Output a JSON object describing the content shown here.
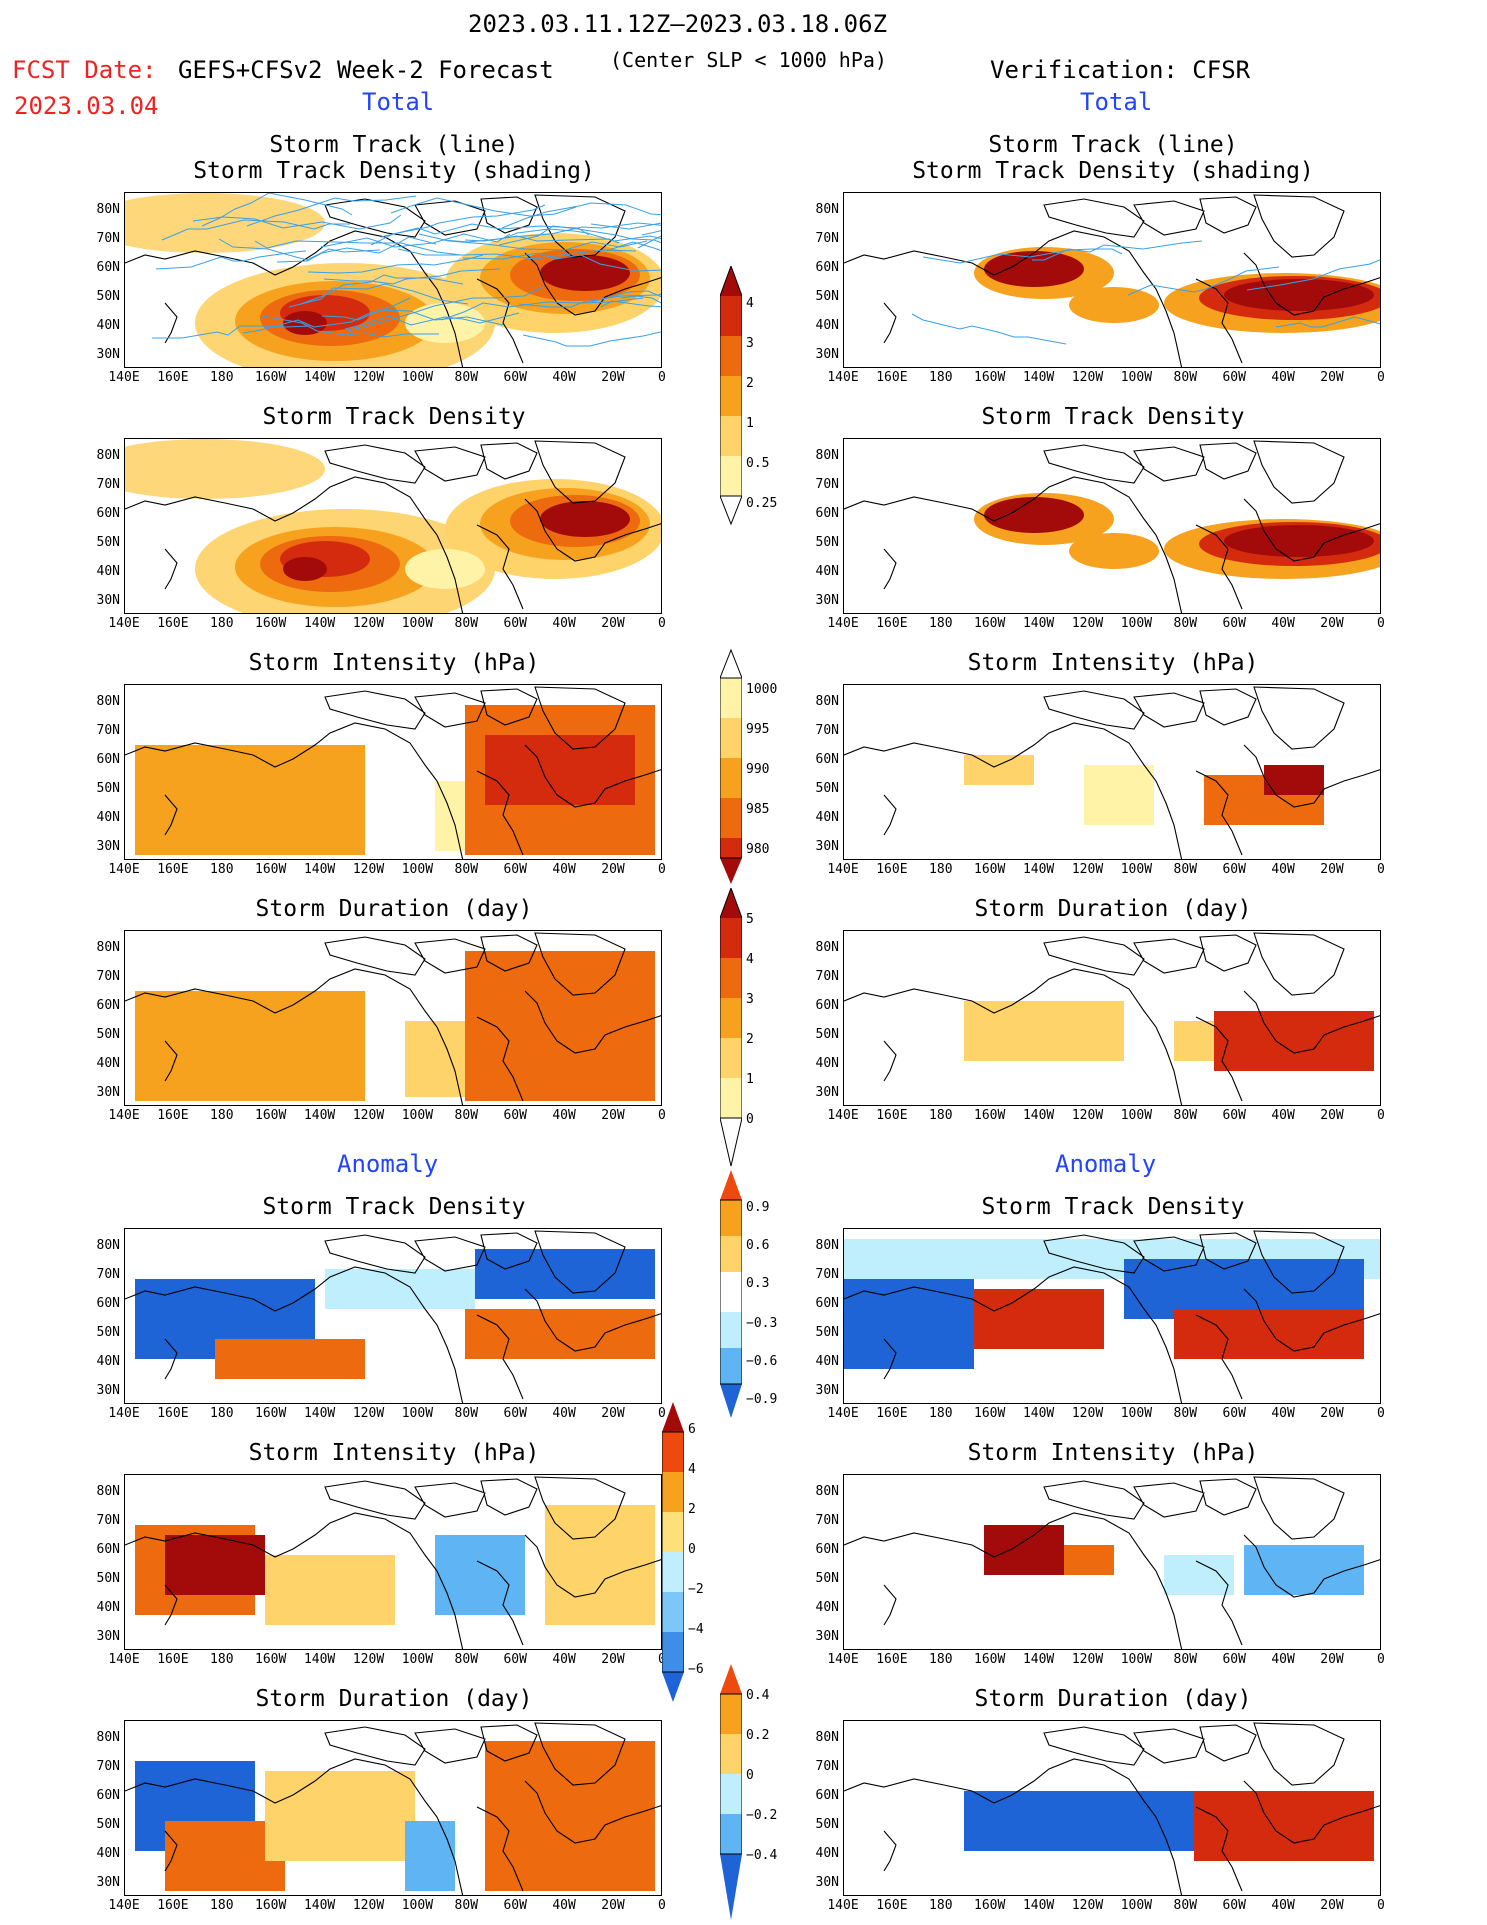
{
  "header": {
    "period": "2023.03.11.12Z–2023.03.18.06Z",
    "fcst_label": "FCST Date:",
    "fcst_date": "2023.03.04",
    "model": "GEFS+CFSv2 Week-2 Forecast",
    "criterion": "(Center SLP < 1000 hPa)",
    "verification": "Verification: CFSR"
  },
  "sections": {
    "total": "Total",
    "anomaly": "Anomaly"
  },
  "panel_titles": {
    "track_line": "Storm Track (line)",
    "track_shading": "Storm Track Density (shading)",
    "density": "Storm Track Density",
    "intensity": "Storm Intensity (hPa)",
    "duration": "Storm Duration (day)"
  },
  "axes": {
    "lat_labels": [
      "80N",
      "70N",
      "60N",
      "50N",
      "40N",
      "30N"
    ],
    "lon_labels": [
      "140E",
      "160E",
      "180",
      "160W",
      "140W",
      "120W",
      "100W",
      "80W",
      "60W",
      "40W",
      "20W",
      "0"
    ]
  },
  "colorbars": {
    "density_total": [
      "4",
      "3",
      "2",
      "1",
      "0.5",
      "0.25"
    ],
    "intensity_total": [
      "1000",
      "995",
      "990",
      "985",
      "980"
    ],
    "duration_total": [
      "5",
      "4",
      "3",
      "2",
      "1",
      "0"
    ],
    "density_anom": [
      "0.9",
      "0.6",
      "0.3",
      "−0.3",
      "−0.6",
      "−0.9"
    ],
    "intensity_anom": [
      "6",
      "4",
      "2",
      "0",
      "−2",
      "−4",
      "−6"
    ],
    "duration_anom": [
      "0.4",
      "0.2",
      "0",
      "−0.2",
      "−0.4"
    ]
  },
  "colors": {
    "pale_yellow": "#fff3a8",
    "light_orange": "#fdd36a",
    "orange": "#f6a21e",
    "dark_orange": "#ee6a0f",
    "red": "#d42a0d",
    "dark_red": "#a30a0a",
    "light_blue": "#bfeefc",
    "mid_blue": "#5fb4f4",
    "dark_blue": "#1e64d6",
    "track_line": "#3aa0e8"
  }
}
